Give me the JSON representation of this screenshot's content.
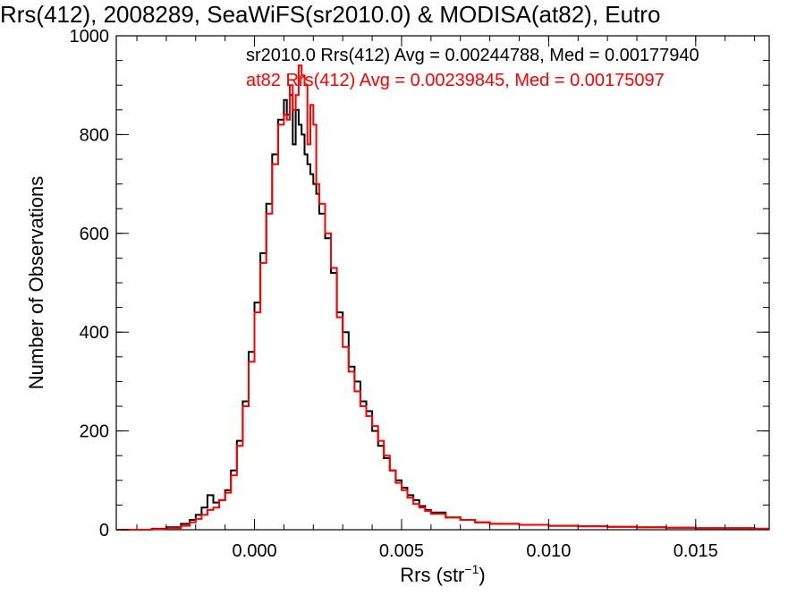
{
  "chart_data": {
    "type": "line",
    "title": "Rrs(412), 2008289, SeaWiFS(sr2010.0) & MODISA(at82), Eutro",
    "xlabel": "Rrs (str",
    "xlabel_sup": "−1",
    "xlabel_close": ")",
    "ylabel": "Number of Observations",
    "xlim": [
      -0.0047,
      0.0175
    ],
    "ylim": [
      0,
      1000
    ],
    "x_ticks": [
      0.0,
      0.005,
      0.01,
      0.015
    ],
    "x_tick_labels": [
      "0.000",
      "0.005",
      "0.010",
      "0.015"
    ],
    "y_ticks": [
      0,
      200,
      400,
      600,
      800,
      1000
    ],
    "y_tick_labels": [
      "0",
      "200",
      "400",
      "600",
      "800",
      "1000"
    ],
    "grid": false,
    "annotations": [
      {
        "text": "sr2010.0 Rrs(412) Avg = 0.00244788, Med = 0.00177940",
        "color": "#000000"
      },
      {
        "text": "at82  Rrs(412) Avg = 0.00239845, Med = 0.00175097",
        "color": "#ff0000"
      }
    ],
    "series": [
      {
        "color": "#000000",
        "x": [
          -0.0047,
          -0.004,
          -0.0035,
          -0.003,
          -0.0025,
          -0.0022,
          -0.002,
          -0.0018,
          -0.0016,
          -0.0014,
          -0.0012,
          -0.001,
          -0.0008,
          -0.0006,
          -0.0004,
          -0.0002,
          0.0,
          0.0002,
          0.0004,
          0.0006,
          0.0008,
          0.001,
          0.0011,
          0.0012,
          0.0013,
          0.0014,
          0.0015,
          0.0016,
          0.0017,
          0.0018,
          0.0019,
          0.002,
          0.0021,
          0.0022,
          0.0024,
          0.0026,
          0.0028,
          0.003,
          0.0032,
          0.0034,
          0.0036,
          0.0038,
          0.004,
          0.0042,
          0.0044,
          0.0046,
          0.0048,
          0.005,
          0.0052,
          0.0054,
          0.0056,
          0.0058,
          0.006,
          0.0065,
          0.007,
          0.0075,
          0.008,
          0.009,
          0.01,
          0.011,
          0.012,
          0.013,
          0.014,
          0.015,
          0.016,
          0.017,
          0.0175
        ],
        "values": [
          0,
          0,
          2,
          5,
          12,
          20,
          30,
          45,
          70,
          55,
          60,
          80,
          120,
          180,
          260,
          360,
          460,
          560,
          660,
          760,
          830,
          870,
          840,
          880,
          780,
          850,
          820,
          800,
          760,
          740,
          720,
          700,
          680,
          640,
          590,
          520,
          440,
          400,
          330,
          300,
          260,
          240,
          200,
          170,
          145,
          120,
          100,
          85,
          70,
          60,
          48,
          40,
          35,
          25,
          20,
          15,
          12,
          10,
          8,
          7,
          6,
          5,
          4,
          3,
          3,
          2,
          2
        ]
      },
      {
        "color": "#ff0000",
        "x": [
          -0.0047,
          -0.004,
          -0.0035,
          -0.003,
          -0.0025,
          -0.0022,
          -0.002,
          -0.0018,
          -0.0016,
          -0.0014,
          -0.0012,
          -0.001,
          -0.0008,
          -0.0006,
          -0.0004,
          -0.0002,
          0.0,
          0.0002,
          0.0004,
          0.0006,
          0.0008,
          0.001,
          0.0011,
          0.0012,
          0.0013,
          0.0014,
          0.0015,
          0.0016,
          0.0017,
          0.0018,
          0.0019,
          0.002,
          0.0021,
          0.0022,
          0.0024,
          0.0026,
          0.0028,
          0.003,
          0.0032,
          0.0034,
          0.0036,
          0.0038,
          0.004,
          0.0042,
          0.0044,
          0.0046,
          0.0048,
          0.005,
          0.0052,
          0.0054,
          0.0056,
          0.0058,
          0.006,
          0.0065,
          0.007,
          0.0075,
          0.008,
          0.009,
          0.01,
          0.011,
          0.012,
          0.013,
          0.014,
          0.015,
          0.016,
          0.017,
          0.0175
        ],
        "values": [
          0,
          0,
          1,
          3,
          8,
          15,
          22,
          30,
          40,
          45,
          60,
          75,
          110,
          170,
          250,
          340,
          440,
          540,
          640,
          740,
          820,
          840,
          830,
          900,
          850,
          880,
          940,
          920,
          900,
          780,
          860,
          820,
          700,
          660,
          600,
          530,
          430,
          370,
          320,
          280,
          250,
          230,
          210,
          180,
          150,
          120,
          95,
          80,
          65,
          52,
          45,
          38,
          32,
          25,
          20,
          15,
          12,
          10,
          8,
          7,
          6,
          5,
          4,
          3,
          3,
          2,
          2
        ]
      }
    ]
  }
}
